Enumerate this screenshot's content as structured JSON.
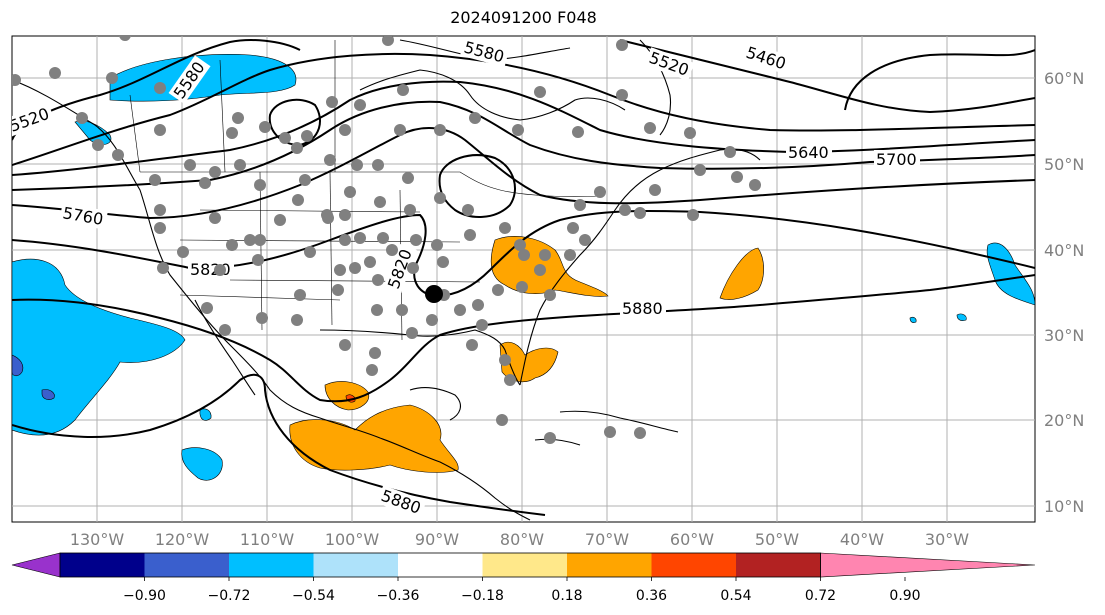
{
  "title": "2024091200 F048",
  "latitude_labels": [
    "60°N",
    "50°N",
    "40°N",
    "30°N",
    "20°N",
    "10°N"
  ],
  "longitude_labels": [
    "130°W",
    "120°W",
    "110°W",
    "100°W",
    "90°W",
    "80°W",
    "70°W",
    "60°W",
    "50°W",
    "40°W",
    "30°W"
  ],
  "contour_labels": [
    "5520",
    "5580",
    "5460",
    "5640",
    "5700",
    "5760",
    "5820",
    "5880",
    "5880",
    "5520",
    "5580",
    "5820"
  ],
  "colorbar": {
    "tick_labels": [
      "−0.90",
      "−0.72",
      "−0.54",
      "−0.36",
      "−0.18",
      "0.18",
      "0.36",
      "0.54",
      "0.72",
      "0.90"
    ],
    "colors": [
      "#9932cc",
      "#00008b",
      "#3a5fcd",
      "#00bfff",
      "#aee2fa",
      "#ffffff",
      "#ffe88a",
      "#ffa500",
      "#ff4500",
      "#b22222",
      "#ff85b0"
    ]
  },
  "palette": {
    "land_fill": "#ffffff",
    "ocean_fill": "#ffffff",
    "grid": "#b0b0b0",
    "station_marker": "#808080",
    "storm_marker": "#000000",
    "contour": "#000000"
  }
}
